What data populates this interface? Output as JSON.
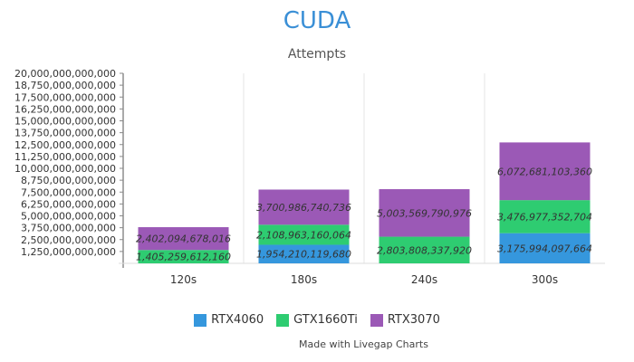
{
  "colors": {
    "title": "#3a8fd6",
    "RTX4060": "#3597dd",
    "GTX1660Ti": "#2ecc71",
    "RTX3070": "#9b59b6",
    "grid": "#e6e6e6"
  },
  "chart_data": {
    "type": "bar",
    "stacked": true,
    "title": "CUDA",
    "subtitle": "Attempts",
    "xlabel": "",
    "ylabel": "",
    "categories": [
      "120s",
      "180s",
      "240s",
      "300s"
    ],
    "ylim": [
      0,
      20000000000000
    ],
    "yticks": [
      "20,000,000,000,000",
      "18,750,000,000,000",
      "17,500,000,000,000",
      "16,250,000,000,000",
      "15,000,000,000,000",
      "13,750,000,000,000",
      "12,500,000,000,000",
      "11,250,000,000,000",
      "10,000,000,000,000",
      "8,750,000,000,000",
      "7,500,000,000,000",
      "6,250,000,000,000",
      "5,000,000,000,000",
      "3,750,000,000,000",
      "2,500,000,000,000",
      "1,250,000,000,000"
    ],
    "ytick_values": [
      20000000000000,
      18750000000000,
      17500000000000,
      16250000000000,
      15000000000000,
      13750000000000,
      12500000000000,
      11250000000000,
      10000000000000,
      8750000000000,
      7500000000000,
      6250000000000,
      5000000000000,
      3750000000000,
      2500000000000,
      1250000000000
    ],
    "grid": true,
    "legend_position": "bottom",
    "series": [
      {
        "name": "RTX4060",
        "values": [
          null,
          1954210119680,
          null,
          3175994097664
        ],
        "labels": [
          "",
          "1,954,210,119,680",
          "",
          "3,175,994,097,664"
        ]
      },
      {
        "name": "GTX1660Ti",
        "values": [
          1405259612160,
          2108963160064,
          2803808337920,
          3476977352704
        ],
        "labels": [
          "1,405,259,612,160",
          "2,108,963,160,064",
          "2,803,808,337,920",
          "3,476,977,352,704"
        ]
      },
      {
        "name": "RTX3070",
        "values": [
          2402094678016,
          3700986740736,
          5003569790976,
          6072681103360
        ],
        "labels": [
          "2,402,094,678,016",
          "3,700,986,740,736",
          "5,003,569,790,976",
          "6,072,681,103,360"
        ]
      }
    ]
  },
  "legend": {
    "items": [
      {
        "label": "RTX4060",
        "color": "#3597dd"
      },
      {
        "label": "GTX1660Ti",
        "color": "#2ecc71"
      },
      {
        "label": "RTX3070",
        "color": "#9b59b6"
      }
    ]
  },
  "credit": "Made with Livegap Charts"
}
